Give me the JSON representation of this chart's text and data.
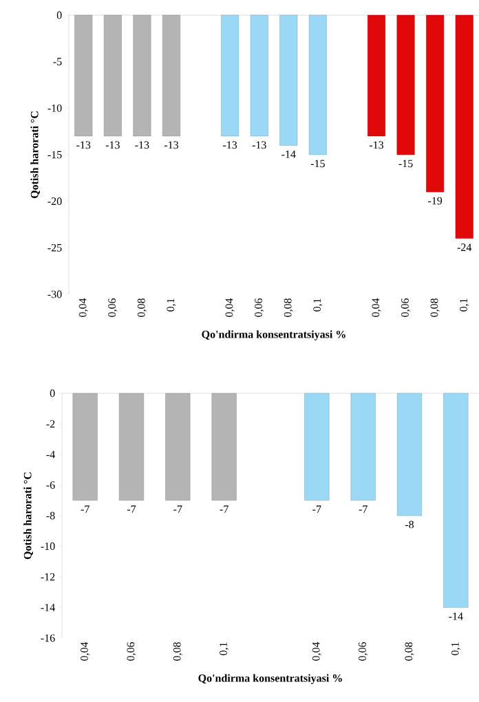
{
  "chart_data": [
    {
      "type": "bar",
      "categories": [
        "0,04",
        "0,06",
        "0,08",
        "0,1",
        null,
        "0,04",
        "0,06",
        "0,08",
        "0,1",
        null,
        "0,04",
        "0,06",
        "0,08",
        "0,1"
      ],
      "values": [
        -13,
        -13,
        -13,
        -13,
        null,
        -13,
        -13,
        -14,
        -15,
        null,
        -13,
        -15,
        -19,
        -24
      ],
      "colors": [
        "#b4b4b4",
        "#b4b4b4",
        "#b4b4b4",
        "#b4b4b4",
        null,
        "#9ad8f5",
        "#9ad8f5",
        "#9ad8f5",
        "#9ad8f5",
        null,
        "#e00808",
        "#e00808",
        "#e00808",
        "#e00808"
      ],
      "ylim": [
        -30,
        0
      ],
      "yticks": [
        0,
        -5,
        -10,
        -15,
        -20,
        -25,
        -30
      ],
      "xlabel": "Qo'ndirma konsentratsiyasi  %",
      "ylabel": "Qotish harorati °C",
      "data_labels": true
    },
    {
      "type": "bar",
      "categories": [
        "0,04",
        "0,06",
        "0,08",
        "0,1",
        null,
        "0,04",
        "0,06",
        "0,08",
        "0,1"
      ],
      "values": [
        -7,
        -7,
        -7,
        -7,
        null,
        -7,
        -7,
        -8,
        -14
      ],
      "colors": [
        "#b4b4b4",
        "#b4b4b4",
        "#b4b4b4",
        "#b4b4b4",
        null,
        "#9ad8f5",
        "#9ad8f5",
        "#9ad8f5",
        "#9ad8f5"
      ],
      "ylim": [
        -16,
        0
      ],
      "yticks": [
        0,
        -2,
        -4,
        -6,
        -8,
        -10,
        -12,
        -14,
        -16
      ],
      "xlabel": "Qo'ndirma konsentratsiyasi  %",
      "ylabel": "Qotish harorati °C",
      "data_labels": true
    }
  ]
}
